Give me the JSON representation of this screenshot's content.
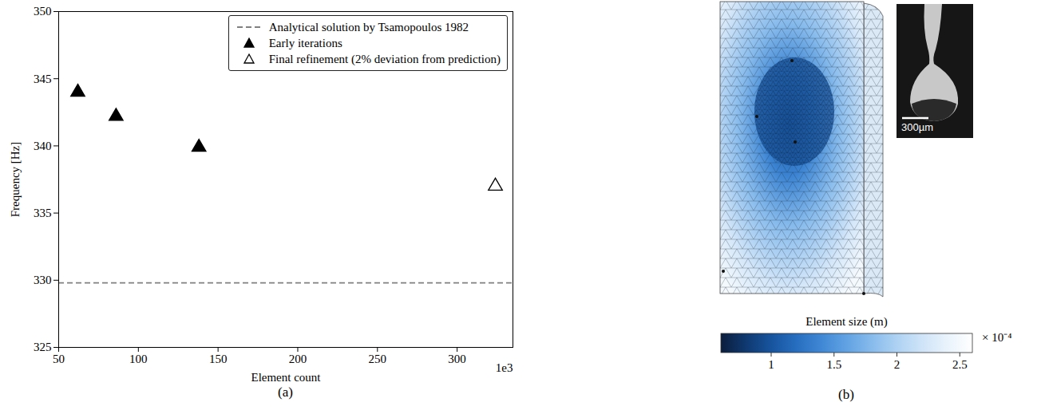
{
  "chart_data": {
    "type": "scatter",
    "caption": "(a)",
    "xlabel": "Element count",
    "ylabel": "Frequency [Hz]",
    "x_offset_text": "1e3",
    "xlim": [
      50,
      335
    ],
    "xticks": [
      50,
      100,
      150,
      200,
      250,
      300
    ],
    "ylim": [
      325,
      350
    ],
    "yticks": [
      325,
      330,
      335,
      340,
      345,
      350
    ],
    "grid": false,
    "legend": "upper right",
    "series": [
      {
        "name": "Analytical solution by Tsamopoulos 1982",
        "type": "hline",
        "line_style": "dashed",
        "color": "#808080",
        "values": [
          329.8
        ]
      },
      {
        "name": "Early iterations",
        "type": "scatter",
        "marker": "triangle",
        "color": "#000000",
        "x": [
          62,
          86,
          138
        ],
        "values": [
          344,
          342.2,
          339.9
        ]
      },
      {
        "name": "Final refinement (2% deviation from prediction)",
        "type": "scatter",
        "marker": "triangle-open",
        "color": "#000000",
        "x": [
          324
        ],
        "values": [
          337
        ]
      }
    ]
  },
  "panel_b": {
    "caption": "(b)",
    "scale_bar": "300µm",
    "colorbar": {
      "label": "Element size (m)",
      "multiplier": "× 10⁻⁴",
      "range": [
        0.6,
        2.6
      ],
      "ticks": [
        1,
        1.5,
        2,
        2.5
      ]
    }
  }
}
